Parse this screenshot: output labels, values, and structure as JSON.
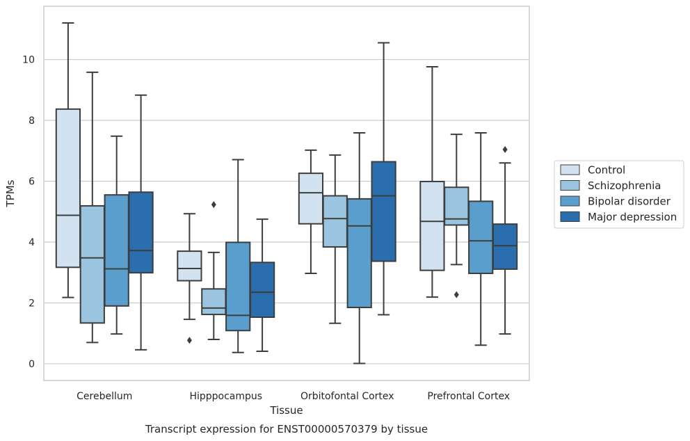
{
  "chart_data": {
    "type": "boxplot",
    "title": "Transcript expression for ENST00000570379 by tissue",
    "xlabel": "Tissue",
    "ylabel": "TPMs",
    "ylim": [
      -0.55,
      11.75
    ],
    "yticks": [
      0,
      2,
      4,
      6,
      8,
      10
    ],
    "grid": "horizontal",
    "legend_position": "right",
    "categories": [
      "Cerebellum",
      "Hipppocampus",
      "Orbitofontal Cortex",
      "Prefrontal Cortex"
    ],
    "series": [
      {
        "name": "Control",
        "color": "#d2e2f1",
        "boxes": [
          {
            "whislo": 2.18,
            "q1": 3.17,
            "med": 4.88,
            "q3": 8.37,
            "whishi": 11.2,
            "fliers": []
          },
          {
            "whislo": 1.46,
            "q1": 2.73,
            "med": 3.13,
            "q3": 3.7,
            "whishi": 4.93,
            "fliers": [
              0.77
            ]
          },
          {
            "whislo": 2.97,
            "q1": 4.6,
            "med": 5.62,
            "q3": 6.26,
            "whishi": 7.02,
            "fliers": []
          },
          {
            "whislo": 2.19,
            "q1": 3.07,
            "med": 4.68,
            "q3": 5.99,
            "whishi": 9.76,
            "fliers": []
          }
        ]
      },
      {
        "name": "Schizophrenia",
        "color": "#9ac4df",
        "boxes": [
          {
            "whislo": 0.7,
            "q1": 1.34,
            "med": 3.48,
            "q3": 5.19,
            "whishi": 9.58,
            "fliers": []
          },
          {
            "whislo": 0.8,
            "q1": 1.62,
            "med": 1.83,
            "q3": 2.46,
            "whishi": 3.66,
            "fliers": [
              5.23
            ]
          },
          {
            "whislo": 1.33,
            "q1": 3.84,
            "med": 4.77,
            "q3": 5.52,
            "whishi": 6.86,
            "fliers": []
          },
          {
            "whislo": 3.26,
            "q1": 4.56,
            "med": 4.76,
            "q3": 5.8,
            "whishi": 7.54,
            "fliers": [
              2.27
            ]
          }
        ]
      },
      {
        "name": "Bipolar disorder",
        "color": "#5a9ecd",
        "boxes": [
          {
            "whislo": 0.98,
            "q1": 1.9,
            "med": 3.12,
            "q3": 5.55,
            "whishi": 7.48,
            "fliers": []
          },
          {
            "whislo": 0.37,
            "q1": 1.09,
            "med": 1.59,
            "q3": 3.99,
            "whishi": 6.71,
            "fliers": []
          },
          {
            "whislo": 0.01,
            "q1": 1.85,
            "med": 4.53,
            "q3": 5.42,
            "whishi": 7.59,
            "fliers": []
          },
          {
            "whislo": 0.61,
            "q1": 2.97,
            "med": 4.04,
            "q3": 5.34,
            "whishi": 7.59,
            "fliers": []
          }
        ]
      },
      {
        "name": "Major depression",
        "color": "#2a6eae",
        "boxes": [
          {
            "whislo": 0.46,
            "q1": 2.99,
            "med": 3.72,
            "q3": 5.64,
            "whishi": 8.83,
            "fliers": []
          },
          {
            "whislo": 0.41,
            "q1": 1.53,
            "med": 2.35,
            "q3": 3.33,
            "whishi": 4.75,
            "fliers": []
          },
          {
            "whislo": 1.61,
            "q1": 3.37,
            "med": 5.52,
            "q3": 6.64,
            "whishi": 10.55,
            "fliers": []
          },
          {
            "whislo": 0.98,
            "q1": 3.11,
            "med": 3.88,
            "q3": 4.59,
            "whishi": 6.6,
            "fliers": [
              7.04
            ]
          }
        ]
      }
    ]
  }
}
